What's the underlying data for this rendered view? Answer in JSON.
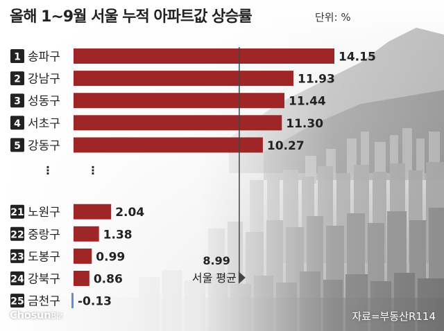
{
  "title": "올해 1~9월 서울 누적 아파트값 상승률",
  "unit_label": "단위: %",
  "source": "자료=부동산R114",
  "logo": {
    "main": "Chosun",
    "sub": "Biz"
  },
  "colors": {
    "bar": "#9e2626",
    "negative_bar": "#5b8fd6",
    "rank_badge": "#222222",
    "avg_line": "#444444"
  },
  "chart_data": {
    "type": "bar",
    "orientation": "horizontal",
    "title": "올해 1~9월 서울 누적 아파트값 상승률",
    "unit": "단위: %",
    "categories": [
      "송파구",
      "강남구",
      "성동구",
      "서초구",
      "강동구",
      "노원구",
      "중랑구",
      "도봉구",
      "강북구",
      "금천구"
    ],
    "ranks": [
      "1",
      "2",
      "3",
      "4",
      "5",
      "21",
      "22",
      "23",
      "24",
      "25"
    ],
    "values": [
      14.15,
      11.93,
      11.44,
      11.3,
      10.27,
      2.04,
      1.38,
      0.99,
      0.86,
      -0.13
    ],
    "value_labels": [
      "14.15",
      "11.93",
      "11.44",
      "11.30",
      "10.27",
      "2.04",
      "1.38",
      "0.99",
      "0.86",
      "-0.13"
    ],
    "gap_marker": "⋮",
    "reference_line": {
      "label": "서울 평균",
      "value": 8.99,
      "value_label": "8.99"
    },
    "xlim": [
      0,
      14.15
    ],
    "grid": false
  }
}
